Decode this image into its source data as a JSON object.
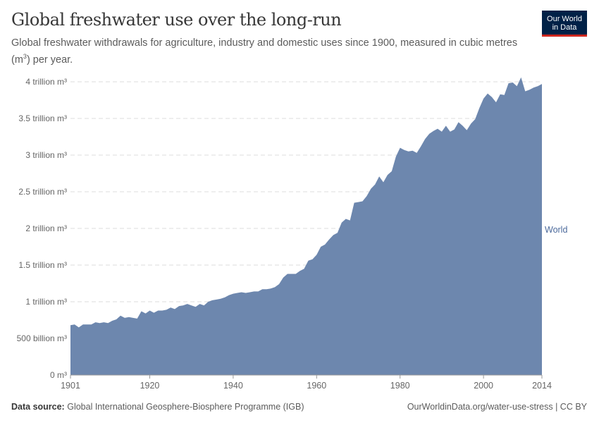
{
  "header": {
    "title": "Global freshwater use over the long-run",
    "subtitle_pre": "Global freshwater withdrawals for agriculture, industry and domestic uses since 1900, measured in cubic metres (m",
    "subtitle_sup": "3",
    "subtitle_post": ") per year.",
    "logo_line1": "Our World",
    "logo_line2": "in Data"
  },
  "footer": {
    "source_label": "Data source:",
    "source": "Global International Geosphere-Biosphere Programme (IGB)",
    "link": "OurWorldinData.org/water-use-stress | CC BY"
  },
  "colors": {
    "area": "#6d87ae",
    "label": "#4c6a9c"
  },
  "chart_data": {
    "type": "area",
    "title": "Global freshwater use over the long-run",
    "xlabel": "",
    "ylabel": "",
    "xlim": [
      1901,
      2014
    ],
    "ylim": [
      0,
      4000000000000
    ],
    "grid": "horizontal dashed",
    "y_ticks": [
      {
        "value": 0,
        "label": "0 m³"
      },
      {
        "value": 500000000000,
        "label": "500 billion m³"
      },
      {
        "value": 1000000000000,
        "label": "1 trillion m³"
      },
      {
        "value": 1500000000000,
        "label": "1.5 trillion m³"
      },
      {
        "value": 2000000000000,
        "label": "2 trillion m³"
      },
      {
        "value": 2500000000000,
        "label": "2.5 trillion m³"
      },
      {
        "value": 3000000000000,
        "label": "3 trillion m³"
      },
      {
        "value": 3500000000000,
        "label": "3.5 trillion m³"
      },
      {
        "value": 4000000000000,
        "label": "4 trillion m³"
      }
    ],
    "x_ticks": [
      "1901",
      "1920",
      "1940",
      "1960",
      "1980",
      "2000",
      "2014"
    ],
    "series": [
      {
        "name": "World",
        "unit": "trillion m³",
        "x": [
          1901,
          1902,
          1903,
          1904,
          1905,
          1906,
          1907,
          1908,
          1909,
          1910,
          1911,
          1912,
          1913,
          1914,
          1915,
          1916,
          1917,
          1918,
          1919,
          1920,
          1921,
          1922,
          1923,
          1924,
          1925,
          1926,
          1927,
          1928,
          1929,
          1930,
          1931,
          1932,
          1933,
          1934,
          1935,
          1936,
          1937,
          1938,
          1939,
          1940,
          1941,
          1942,
          1943,
          1944,
          1945,
          1946,
          1947,
          1948,
          1949,
          1950,
          1951,
          1952,
          1953,
          1954,
          1955,
          1956,
          1957,
          1958,
          1959,
          1960,
          1961,
          1962,
          1963,
          1964,
          1965,
          1966,
          1967,
          1968,
          1969,
          1970,
          1971,
          1972,
          1973,
          1974,
          1975,
          1976,
          1977,
          1978,
          1979,
          1980,
          1981,
          1982,
          1983,
          1984,
          1985,
          1986,
          1987,
          1988,
          1989,
          1990,
          1991,
          1992,
          1993,
          1994,
          1995,
          1996,
          1997,
          1998,
          1999,
          2000,
          2001,
          2002,
          2003,
          2004,
          2005,
          2006,
          2007,
          2008,
          2009,
          2010,
          2011,
          2012,
          2013,
          2014
        ],
        "values": [
          0.68,
          0.69,
          0.65,
          0.69,
          0.69,
          0.69,
          0.72,
          0.71,
          0.72,
          0.71,
          0.74,
          0.76,
          0.81,
          0.78,
          0.79,
          0.78,
          0.77,
          0.87,
          0.84,
          0.88,
          0.85,
          0.88,
          0.88,
          0.89,
          0.92,
          0.9,
          0.94,
          0.95,
          0.97,
          0.95,
          0.93,
          0.97,
          0.95,
          1.0,
          1.02,
          1.03,
          1.04,
          1.06,
          1.09,
          1.11,
          1.12,
          1.13,
          1.12,
          1.13,
          1.14,
          1.14,
          1.17,
          1.17,
          1.18,
          1.2,
          1.24,
          1.33,
          1.38,
          1.38,
          1.38,
          1.42,
          1.45,
          1.56,
          1.58,
          1.64,
          1.75,
          1.78,
          1.85,
          1.91,
          1.94,
          2.08,
          2.13,
          2.11,
          2.35,
          2.36,
          2.37,
          2.44,
          2.54,
          2.6,
          2.71,
          2.63,
          2.73,
          2.78,
          2.98,
          3.1,
          3.07,
          3.05,
          3.06,
          3.03,
          3.12,
          3.22,
          3.29,
          3.33,
          3.36,
          3.32,
          3.4,
          3.32,
          3.35,
          3.45,
          3.4,
          3.34,
          3.43,
          3.49,
          3.64,
          3.77,
          3.84,
          3.79,
          3.72,
          3.83,
          3.82,
          3.98,
          3.99,
          3.94,
          4.06,
          3.87,
          3.89,
          3.92,
          3.94,
          3.97
        ]
      }
    ]
  }
}
